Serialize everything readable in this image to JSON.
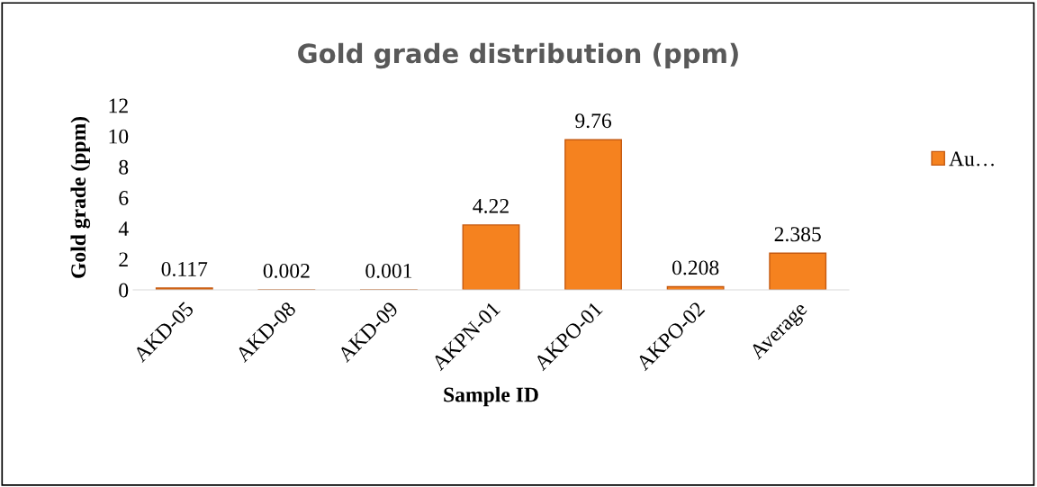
{
  "chart_data": {
    "type": "bar",
    "title": "Gold grade distribution (ppm)",
    "xlabel": "Sample ID",
    "ylabel": "Gold grade (ppm)",
    "categories": [
      "AKD-05",
      "AKD-08",
      "AKD-09",
      "AKPN-01",
      "AKPO-01",
      "AKPO-02",
      "Average"
    ],
    "series": [
      {
        "name": "Au…",
        "color": "#f5821f",
        "values": [
          0.117,
          0.002,
          0.001,
          4.22,
          9.76,
          0.208,
          2.385
        ]
      }
    ],
    "ylim": [
      0,
      12
    ],
    "yticks": [
      0,
      2,
      4,
      6,
      8,
      10,
      12
    ],
    "grid": false,
    "legend": "right",
    "data_labels": true
  }
}
